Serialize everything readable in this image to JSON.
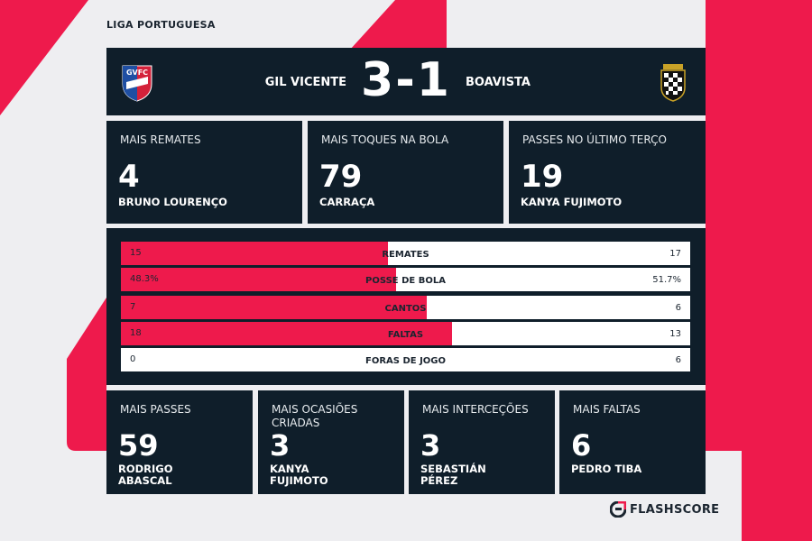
{
  "league": "LIGA PORTUGUESA",
  "match": {
    "home_team": "GIL VICENTE",
    "away_team": "BOAVISTA",
    "score": "3-1",
    "home_crest_icon": "gil-vicente-crest",
    "away_crest_icon": "boavista-crest"
  },
  "top_cards": [
    {
      "title": "MAIS REMATES",
      "value": "4",
      "player": "BRUNO LOURENÇO"
    },
    {
      "title": "MAIS TOQUES NA BOLA",
      "value": "79",
      "player": "CARRAÇA"
    },
    {
      "title": "PASSES NO ÚLTIMO TERÇO",
      "value": "19",
      "player": "KANYA FUJIMOTO"
    }
  ],
  "stats": [
    {
      "label": "REMATES",
      "home": "15",
      "away": "17",
      "home_share": 0.469
    },
    {
      "label": "POSSE DE BOLA",
      "home": "48.3%",
      "away": "51.7%",
      "home_share": 0.483
    },
    {
      "label": "CANTOS",
      "home": "7",
      "away": "6",
      "home_share": 0.538
    },
    {
      "label": "FALTAS",
      "home": "18",
      "away": "13",
      "home_share": 0.581
    },
    {
      "label": "FORAS DE JOGO",
      "home": "0",
      "away": "6",
      "home_share": 0
    }
  ],
  "bottom_cards": [
    {
      "title_line1": "MAIS PASSES",
      "title_line2": "",
      "value": "59",
      "player_line1": "RODRIGO",
      "player_line2": "ABASCAL"
    },
    {
      "title_line1": "MAIS OCASIÕES",
      "title_line2": "CRIADAS",
      "value": "3",
      "player_line1": "KANYA",
      "player_line2": "FUJIMOTO"
    },
    {
      "title_line1": "MAIS INTERCEÇÕES",
      "title_line2": "",
      "value": "3",
      "player_line1": "SEBASTIÁN",
      "player_line2": "PÉREZ"
    },
    {
      "title_line1": "MAIS FALTAS",
      "title_line2": "",
      "value": "6",
      "player_line1": "PEDRO TIBA",
      "player_line2": ""
    }
  ],
  "brand": {
    "name": "FLASHSCORE",
    "logo_icon": "flashscore-logo-icon"
  },
  "colors": {
    "accent": "#ee1a4c",
    "panel": "#0f1e2a",
    "background": "#eeeef1"
  }
}
